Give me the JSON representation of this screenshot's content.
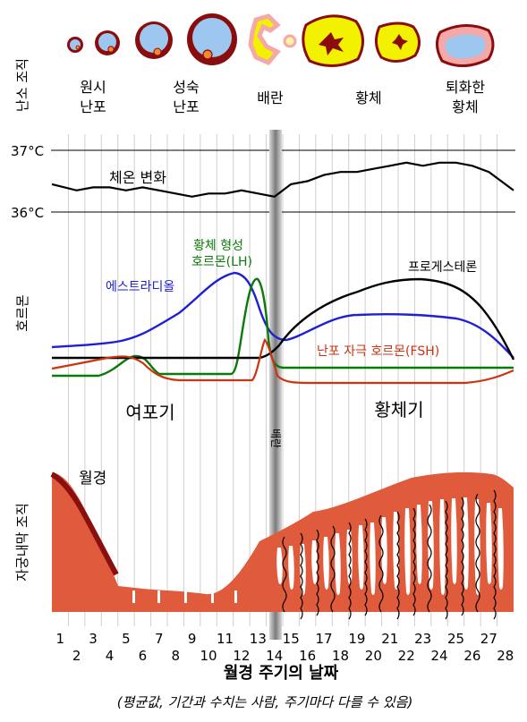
{
  "title_axis": "월경 주기의 날짜",
  "caption": "(평균값, 기간과 수치는 사람, 주기마다 다를 수 있음)",
  "section_labels": {
    "ovary": "난소 조직",
    "hormone": "호르몬",
    "endometrium": "자궁내막 조직"
  },
  "follicle_stages": [
    {
      "line1": "원시",
      "line2": "난포"
    },
    {
      "line1": "성숙",
      "line2": "난포"
    },
    {
      "line1": "배란",
      "line2": ""
    },
    {
      "line1": "황체",
      "line2": ""
    },
    {
      "line1": "퇴화한",
      "line2": "황체"
    }
  ],
  "temperature": {
    "label": "체온 변화",
    "high": "37°C",
    "low": "36°C",
    "values_c": [
      36.45,
      36.35,
      36.4,
      36.4,
      36.35,
      36.4,
      36.35,
      36.3,
      36.25,
      36.3,
      36.3,
      36.35,
      36.3,
      36.25,
      36.45,
      36.5,
      36.6,
      36.65,
      36.65,
      36.7,
      36.75,
      36.8,
      36.75,
      36.8,
      36.8,
      36.75,
      36.65,
      36.35
    ]
  },
  "hormones": {
    "lh": {
      "label_line1": "황체 형성",
      "label_line2": "호르몬(LH)",
      "color": "#0a7a0a"
    },
    "estradiol": {
      "label": "에스트라디올",
      "color": "#1f1fd6"
    },
    "progesterone": {
      "label": "프로게스테론",
      "color": "#000000"
    },
    "fsh": {
      "label": "난포 자극 호르몬(FSH)",
      "color": "#cc3311"
    }
  },
  "phases": {
    "follicular": "여포기",
    "ovulation": "배란",
    "luteal": "황체기"
  },
  "menstruation_label": "월경",
  "days": [
    "1",
    "2",
    "3",
    "4",
    "5",
    "6",
    "7",
    "8",
    "9",
    "10",
    "11",
    "12",
    "13",
    "14",
    "15",
    "16",
    "17",
    "18",
    "19",
    "20",
    "21",
    "22",
    "23",
    "24",
    "25",
    "26",
    "27",
    "28"
  ],
  "colors": {
    "endometrium": "#e05a3c",
    "endometrium_dark": "#8a1010",
    "ovary_blue": "#9ec7f0",
    "ovary_dark": "#8a0c0c",
    "corpus_yellow": "#f2f200",
    "ovulation_band": "#9a9a9a"
  }
}
